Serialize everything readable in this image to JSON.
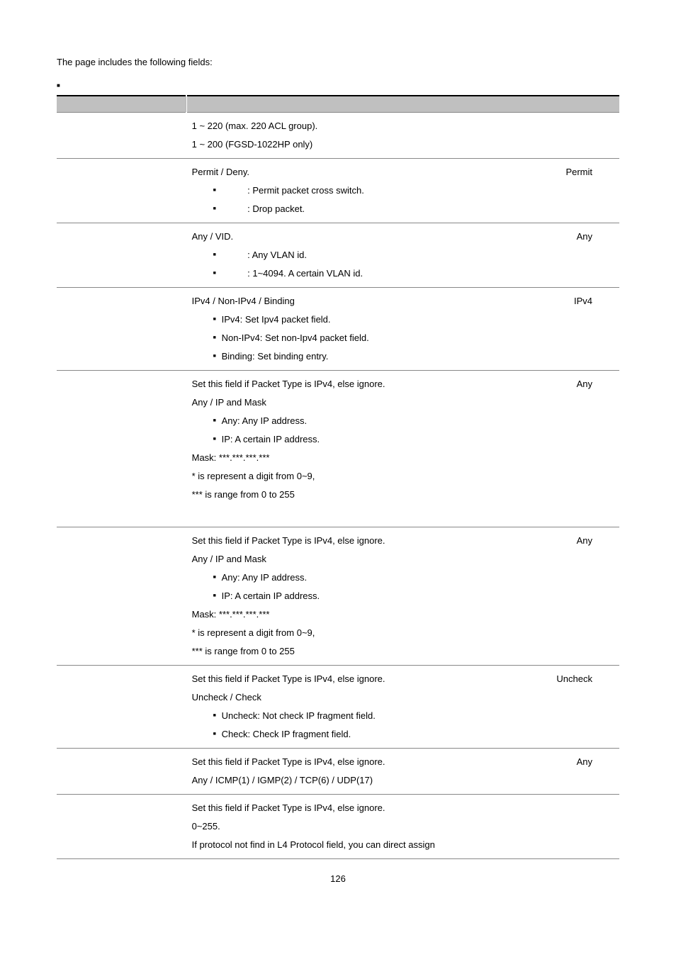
{
  "intro_text": "The page includes the following fields:",
  "bullet_marker": "■",
  "header": {
    "col1": "",
    "col2": ""
  },
  "page_number": "126",
  "rows": [
    {
      "label": "",
      "lines": [
        "1 ~ 220 (max. 220 ACL group).",
        "1 ~ 200 (FGSD-1022HP only)"
      ],
      "default": "",
      "bottom_border": true
    },
    {
      "label": "",
      "headline": "Permit / Deny.",
      "default": "Permit",
      "sub_items_wide": [
        ": Permit packet cross switch.",
        ": Drop packet."
      ],
      "bottom_border": true
    },
    {
      "label": "",
      "headline": "Any / VID.",
      "default": "Any",
      "sub_items_wide": [
        ": Any VLAN id.",
        ": 1~4094. A certain VLAN id."
      ],
      "bottom_border": true
    },
    {
      "label": "",
      "headline": "IPv4 / Non-IPv4 / Binding",
      "default": "IPv4",
      "sub_items": [
        "IPv4: Set Ipv4 packet field.",
        "Non-IPv4: Set non-Ipv4 packet field.",
        "Binding: Set binding entry."
      ],
      "bottom_border": true
    },
    {
      "label": "",
      "headline": "Set this field if Packet Type is IPv4, else ignore.",
      "default": "Any",
      "lines_after": [
        "Any / IP and Mask"
      ],
      "sub_items": [
        "Any: Any IP address.",
        "IP: A certain IP address."
      ],
      "tail_lines": [
        "Mask: ***.***.***.***",
        "* is represent a digit from 0~9,",
        "*** is range from 0 to 255"
      ],
      "extra_bottom_space": true,
      "bottom_border": true
    },
    {
      "label": "",
      "headline": "Set this field if Packet Type is IPv4, else ignore.",
      "default": "Any",
      "lines_after": [
        "Any / IP and Mask"
      ],
      "sub_items": [
        "Any: Any IP address.",
        "IP: A certain IP address."
      ],
      "tail_lines": [
        "Mask: ***.***.***.***",
        "* is represent a digit from 0~9,",
        "*** is range from 0 to 255"
      ],
      "bottom_border": true
    },
    {
      "label": "",
      "headline": "Set this field if Packet Type is IPv4, else ignore.",
      "default": "Uncheck",
      "lines_after": [
        "Uncheck / Check"
      ],
      "sub_items": [
        "Uncheck: Not check IP fragment field.",
        "Check: Check IP fragment field."
      ],
      "bottom_border": true
    },
    {
      "label": "",
      "headline": "Set this field if Packet Type is IPv4, else ignore.",
      "default": "Any",
      "lines_after": [
        "Any / ICMP(1) / IGMP(2) / TCP(6) / UDP(17)"
      ],
      "bottom_border": true
    },
    {
      "label": "",
      "lines": [
        "Set this field if Packet Type is IPv4, else ignore.",
        "0~255.",
        "If protocol not find in L4 Protocol field, you can direct assign"
      ],
      "default": "",
      "bottom_border": true
    }
  ]
}
